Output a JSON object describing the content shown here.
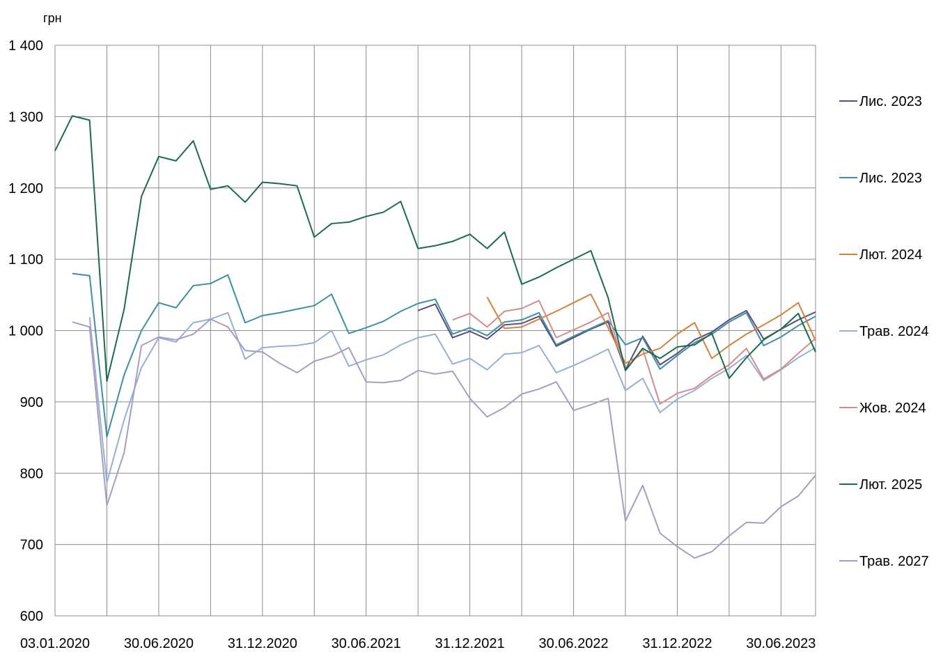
{
  "chart_data": {
    "type": "line",
    "title": "",
    "ylabel": "грн",
    "xlabel": "",
    "ylim": [
      600,
      1400
    ],
    "yticks": [
      600,
      700,
      800,
      900,
      1000,
      1100,
      1200,
      1300,
      1400
    ],
    "ytick_labels": [
      "600",
      "700",
      "800",
      "900",
      "1 000",
      "1 100",
      "1 200",
      "1 300",
      "1 400"
    ],
    "x_count": 45,
    "xtick_labels": [
      {
        "i": 0,
        "label": "03.01.2020"
      },
      {
        "i": 6,
        "label": "30.06.2020"
      },
      {
        "i": 12,
        "label": "31.12.2020"
      },
      {
        "i": 18,
        "label": "30.06.2021"
      },
      {
        "i": 24,
        "label": "31.12.2021"
      },
      {
        "i": 30,
        "label": "30.06.2022"
      },
      {
        "i": 36,
        "label": "31.12.2022"
      },
      {
        "i": 42,
        "label": "30.06.2023"
      }
    ],
    "grid": true,
    "legend_position": "right",
    "series": [
      {
        "name": "Лис. 2023",
        "color": "#5b4a7f",
        "values": [
          null,
          null,
          null,
          null,
          null,
          null,
          null,
          null,
          null,
          null,
          null,
          null,
          null,
          null,
          null,
          null,
          null,
          null,
          null,
          null,
          null,
          1028,
          1037,
          990,
          999,
          988,
          1008,
          1010,
          1020,
          978,
          990,
          1002,
          1012,
          945,
          992,
          952,
          968,
          987,
          998,
          1015,
          1028,
          988,
          1002,
          1015,
          1026
        ]
      },
      {
        "name": "Лис. 2023",
        "color": "#3d8fa6",
        "values": [
          null,
          1080,
          1077,
          851,
          938,
          1000,
          1039,
          1032,
          1063,
          1066,
          1078,
          1011,
          1021,
          1025,
          1030,
          1035,
          1051,
          996,
          1004,
          1013,
          1027,
          1038,
          1044,
          995,
          1004,
          993,
          1012,
          1015,
          1025,
          980,
          992,
          1003,
          1014,
          980,
          990,
          946,
          965,
          983,
          995,
          1012,
          1025,
          979,
          991,
          1007,
          1020
        ]
      },
      {
        "name": "Лют. 2024",
        "color": "#d4823a",
        "values": [
          null,
          null,
          null,
          null,
          null,
          null,
          null,
          null,
          null,
          null,
          null,
          null,
          null,
          null,
          null,
          null,
          null,
          null,
          null,
          null,
          null,
          null,
          null,
          null,
          null,
          1047,
          1003,
          1005,
          1016,
          1027,
          1039,
          1051,
          1004,
          954,
          967,
          975,
          995,
          1011,
          961,
          979,
          995,
          1008,
          1022,
          1039,
          986
        ]
      },
      {
        "name": "Трав. 2024",
        "color": "#96afd4",
        "values": [
          null,
          null,
          1019,
          787,
          875,
          948,
          990,
          984,
          1011,
          1016,
          1025,
          960,
          976,
          978,
          979,
          983,
          1000,
          950,
          959,
          966,
          980,
          990,
          995,
          953,
          961,
          945,
          967,
          969,
          979,
          941,
          951,
          962,
          974,
          916,
          933,
          885,
          904,
          916,
          933,
          947,
          965,
          930,
          945,
          962,
          976
        ]
      },
      {
        "name": "Жов. 2024",
        "color": "#d48b8b",
        "values": [
          null,
          null,
          null,
          null,
          null,
          null,
          null,
          null,
          null,
          null,
          null,
          null,
          null,
          null,
          null,
          null,
          null,
          null,
          null,
          null,
          null,
          null,
          null,
          1015,
          1024,
          1005,
          1027,
          1031,
          1042,
          990,
          1001,
          1012,
          1025,
          944,
          974,
          897,
          912,
          919,
          937,
          952,
          975,
          932,
          946,
          968,
          989
        ]
      },
      {
        "name": "Лют. 2025",
        "color": "#1a6b4a",
        "values": [
          1252,
          1301,
          1295,
          929,
          1030,
          1188,
          1244,
          1238,
          1266,
          1198,
          1203,
          1180,
          1208,
          1206,
          1203,
          1131,
          1150,
          1152,
          1160,
          1166,
          1181,
          1115,
          1119,
          1125,
          1135,
          1115,
          1138,
          1065,
          1075,
          1088,
          1100,
          1112,
          1046,
          944,
          975,
          961,
          977,
          980,
          996,
          933,
          962,
          987,
          1002,
          1024,
          970
        ]
      },
      {
        "name": "Трав. 2027",
        "color": "#a89cc2",
        "values": [
          null,
          1012,
          1005,
          755,
          829,
          979,
          991,
          987,
          995,
          1016,
          1005,
          972,
          970,
          954,
          941,
          957,
          964,
          976,
          928,
          927,
          930,
          944,
          939,
          943,
          905,
          879,
          892,
          911,
          918,
          928,
          888,
          896,
          905,
          733,
          783,
          716,
          697,
          681,
          690,
          712,
          731,
          730,
          753,
          768,
          797
        ]
      }
    ]
  }
}
